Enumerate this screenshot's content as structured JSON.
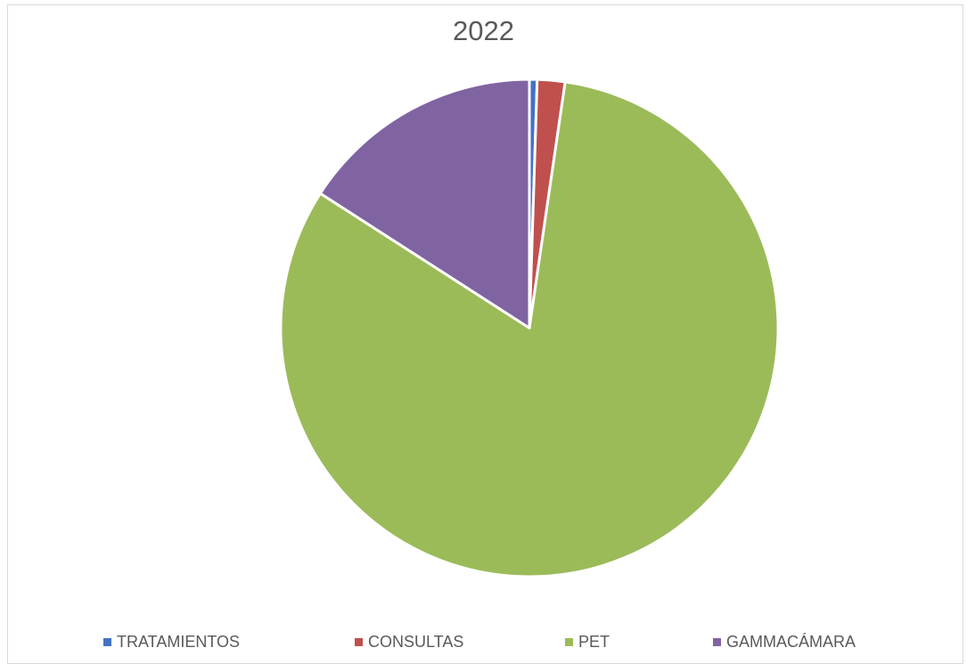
{
  "chart_data": {
    "type": "pie",
    "title": "2022",
    "categories": [
      "TRATAMIENTOS",
      "CONSULTAS",
      "PET",
      "GAMMACÁMARA"
    ],
    "values": [
      0.5,
      1.8,
      81.8,
      15.9
    ],
    "colors": [
      "#4472c4",
      "#c0504d",
      "#9bbb59",
      "#8064a2"
    ],
    "legend_position": "bottom"
  }
}
